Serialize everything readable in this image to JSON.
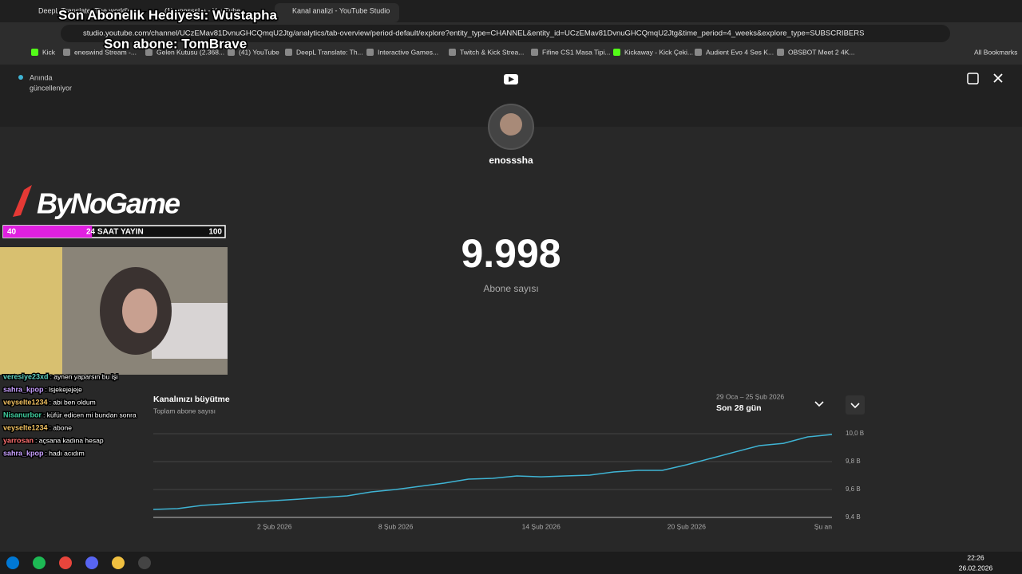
{
  "browser": {
    "tabs": [
      "DeepL Translate: The world's",
      "(1) enosssha - YouTube",
      "Kanal analizi - YouTube Studio"
    ],
    "url": "studio.youtube.com/channel/UCzEMav81DvnuGHCQmqU2Jtg/analytics/tab-overview/period-default/explore?entity_type=CHANNEL&entity_id=UCzEMav81DvnuGHCQmqU2Jtg&time_period=4_weeks&explore_type=SUBSCRIBERS",
    "bookmarks": [
      "Kick",
      "eneswind Stream -...",
      "Gelen Kutusu (2.368...",
      "(41) YouTube",
      "DeepL Translate: Th...",
      "Interactive Games...",
      "Twitch & Kick Strea...",
      "Fifine CS1 Masa Tipi...",
      "Kickaway - Kick Çeki...",
      "Audient Evo 4 Ses K...",
      "OBSBOT Meet 2 4K..."
    ],
    "all_bookmarks": "All Bookmarks"
  },
  "overlay": {
    "gift": "Son Abonelik Hediyesi: Wustapha",
    "last_sub": "Son abone: TomBrave",
    "logo": "ByNoGame",
    "bar_value": 40,
    "bar_label": "24 SAAT YAYIN",
    "bar_max": 100,
    "chat": [
      {
        "user": "veresiye23xd",
        "text": ": aynen yaparsın bu işi",
        "color": "#5fd0c0"
      },
      {
        "user": "sahra_kpop",
        "text": ": lsjekejejeje",
        "color": "#c8a0ff"
      },
      {
        "user": "veyselte1234",
        "text": ": abi ben oldum",
        "color": "#f0c060"
      },
      {
        "user": "Nisanurbor",
        "text": ": küfür edicen mi bundan sonra",
        "color": "#40d0a0"
      },
      {
        "user": "veyselte1234",
        "text": ": abone",
        "color": "#f0c060"
      },
      {
        "user": "yarrosan",
        "text": ": açsana kadına hesap",
        "color": "#ff7070"
      },
      {
        "user": "sahra_kpop",
        "text": ": hadı acıdım",
        "color": "#c8a0ff"
      }
    ]
  },
  "studio": {
    "live": "Anında",
    "live2": "güncelleniyor",
    "channel": "enosssha",
    "count": "9.998",
    "count_label": "Abone sayısı",
    "range": "29 Oca – 25 Şub 2026",
    "period": "Son 28 gün"
  },
  "chart_data": {
    "type": "line",
    "title": "Kanalınızı büyütme",
    "subtitle": "Toplam abone sayısı",
    "categories": [
      null,
      null,
      null,
      null,
      null,
      "2 Şub 2026",
      null,
      null,
      null,
      null,
      "8 Şub 2026",
      null,
      null,
      null,
      null,
      null,
      "14 Şub 2026",
      null,
      null,
      null,
      null,
      null,
      "20 Şub 2026",
      null,
      null,
      null,
      null,
      null,
      "Şu an"
    ],
    "values": [
      9.457,
      9.463,
      9.486,
      9.497,
      9.509,
      9.52,
      9.531,
      9.543,
      9.554,
      9.583,
      9.6,
      9.623,
      9.646,
      9.674,
      9.68,
      9.697,
      9.691,
      9.697,
      9.703,
      9.726,
      9.737,
      9.737,
      9.777,
      9.823,
      9.869,
      9.914,
      9.931,
      9.977,
      9.994
    ],
    "color": "#3fb4d4",
    "ylim": [
      9.4,
      10.0
    ],
    "yticks": [
      {
        "value": 9.4,
        "label": "9,4 B"
      },
      {
        "value": 9.6,
        "label": "9,6 B"
      },
      {
        "value": 9.8,
        "label": "9,8 B"
      },
      {
        "value": 10.0,
        "label": "10,0 B"
      }
    ],
    "grid": true
  },
  "taskbar": {
    "time": "22:26",
    "date": "26.02.2026"
  }
}
